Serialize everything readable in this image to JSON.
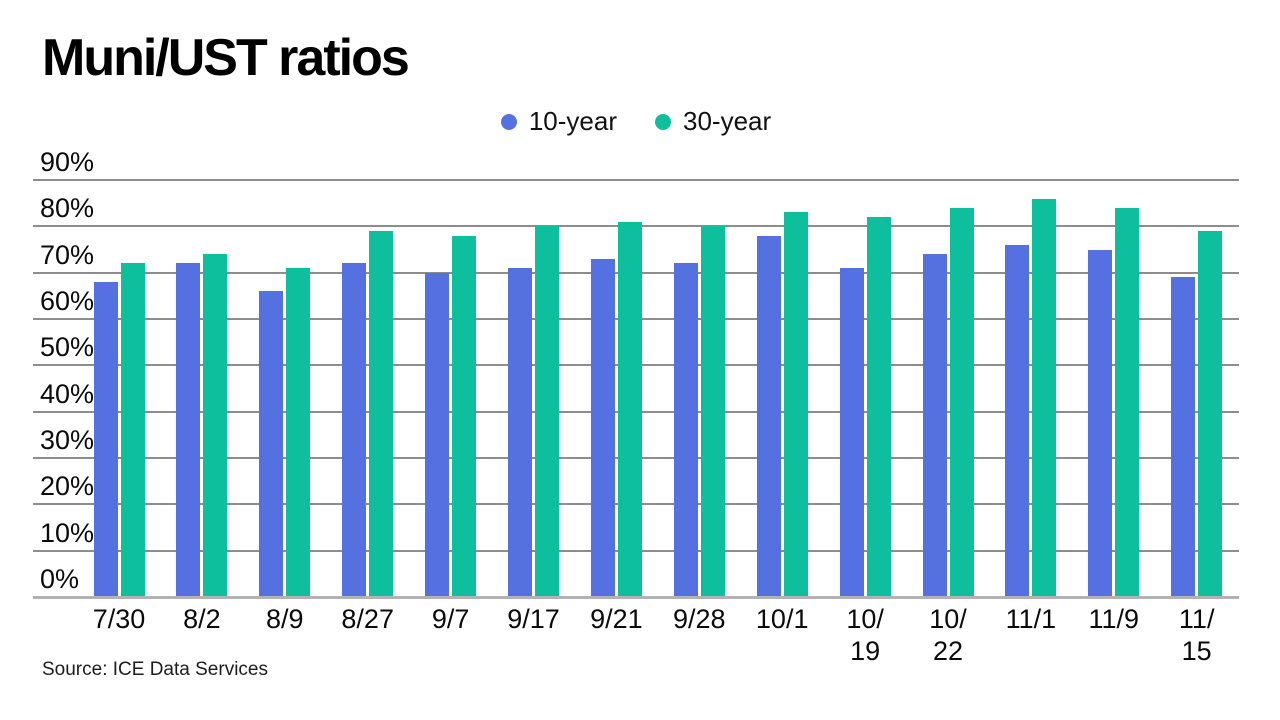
{
  "title": "Muni/UST ratios",
  "source": "Source: ICE Data Services",
  "legend": {
    "items": [
      {
        "label": "10-year",
        "color": "#5571e1"
      },
      {
        "label": "30-year",
        "color": "#0dbf9c"
      }
    ]
  },
  "colors": {
    "series_10_year": "#5571e1",
    "series_30_year": "#0dbf9c",
    "gridline": "#8d8d8d",
    "axis": "#b2b2b2",
    "text": "#0b0b0b"
  },
  "chart_data": {
    "type": "bar",
    "title": "Muni/UST ratios",
    "categories": [
      "7/30",
      "8/2",
      "8/9",
      "8/27",
      "9/7",
      "9/17",
      "9/21",
      "9/28",
      "10/1",
      "10/19",
      "10/22",
      "11/1",
      "11/9",
      "11/15"
    ],
    "x_tick_display": [
      "7/30",
      "8/2",
      "8/9",
      "8/27",
      "9/7",
      "9/17",
      "9/21",
      "9/28",
      "10/1",
      "10/\n19",
      "10/\n22",
      "11/1",
      "11/9",
      "11/\n15"
    ],
    "series": [
      {
        "name": "10-year",
        "color": "#5571e1",
        "values": [
          68,
          72,
          66,
          72,
          70,
          71,
          73,
          72,
          78,
          71,
          74,
          76,
          75,
          69
        ]
      },
      {
        "name": "30-year",
        "color": "#0dbf9c",
        "values": [
          72,
          74,
          71,
          79,
          78,
          80,
          81,
          80,
          83,
          82,
          84,
          86,
          84,
          79
        ]
      }
    ],
    "xlabel": "",
    "ylabel": "",
    "ylim": [
      0,
      90
    ],
    "yticks": [
      0,
      10,
      20,
      30,
      40,
      50,
      60,
      70,
      80,
      90
    ],
    "ytick_suffix": "%",
    "grid": true,
    "legend_position": "top-center",
    "source": "Source: ICE Data Services"
  }
}
